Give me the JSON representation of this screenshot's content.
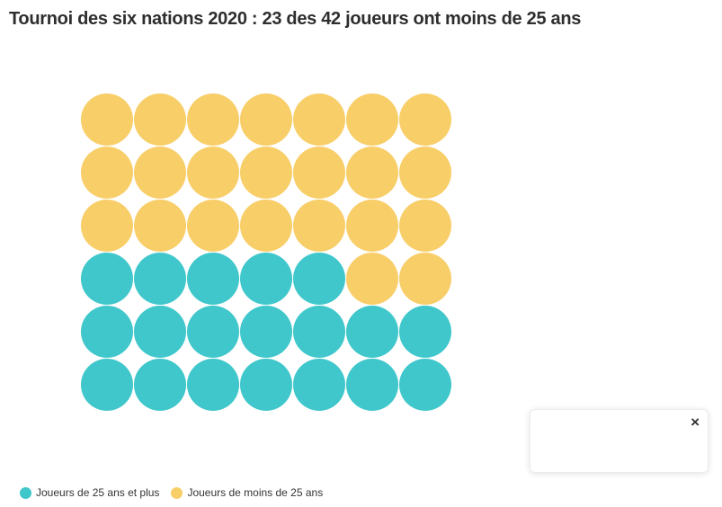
{
  "page": {
    "title": "Tournoi des six nations 2020 : 23 des 42 joueurs ont moins de 25 ans"
  },
  "chart_data": {
    "type": "waffle",
    "title": "Tournoi des six nations 2020 : 23 des 42 joueurs ont moins de 25 ans",
    "total_units": 42,
    "rows": 6,
    "cols": 7,
    "categories": [
      {
        "label": "Joueurs de 25 ans et plus",
        "value": 19,
        "color": "#3FC7CB"
      },
      {
        "label": "Joueurs de moins de 25 ans",
        "value": 23,
        "color": "#F8CE68"
      }
    ],
    "grid": [
      [
        1,
        1,
        1,
        1,
        1,
        1,
        1
      ],
      [
        1,
        1,
        1,
        1,
        1,
        1,
        1
      ],
      [
        1,
        1,
        1,
        1,
        1,
        1,
        1
      ],
      [
        0,
        0,
        0,
        0,
        0,
        1,
        1
      ],
      [
        0,
        0,
        0,
        0,
        0,
        0,
        0
      ],
      [
        0,
        0,
        0,
        0,
        0,
        0,
        0
      ]
    ],
    "legend_position": "bottom-left",
    "grid_lines": false
  },
  "popup": {
    "close_icon": "×"
  },
  "colors": {
    "teal": "#3FC7CB",
    "yellow": "#F8CE68",
    "title_text": "#2e2e2e",
    "legend_text": "#333333"
  }
}
